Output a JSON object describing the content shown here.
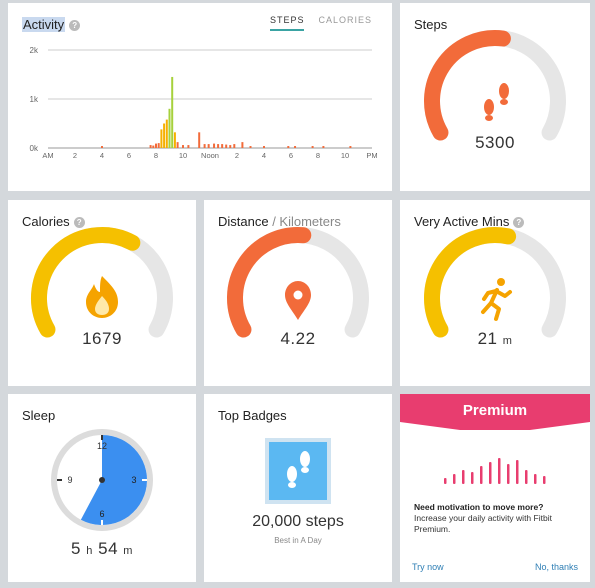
{
  "activity": {
    "title": "Activity",
    "help": "?",
    "tabs": [
      "STEPS",
      "CALORIES"
    ],
    "active_tab": "STEPS"
  },
  "steps_tile": {
    "title": "Steps",
    "value": "5300",
    "progress": 0.53,
    "icon": "footprints-icon",
    "color": "#f26b3a"
  },
  "calories_tile": {
    "title": "Calories",
    "help": "?",
    "value": "1679",
    "progress": 0.62,
    "icon": "flame-icon",
    "color": "#f5c000"
  },
  "distance_tile": {
    "title": "Distance",
    "title_sep": " / ",
    "title_unit": "Kilometers",
    "value": "4.22",
    "progress": 0.52,
    "icon": "location-pin-icon",
    "color": "#f26b3a"
  },
  "vam_tile": {
    "title": "Very Active Mins",
    "help": "?",
    "value": "21",
    "unit": "m",
    "progress": 0.55,
    "icon": "runner-icon",
    "color": "#f5c000"
  },
  "sleep_tile": {
    "title": "Sleep",
    "hours": "5",
    "hours_unit": "h",
    "minutes": "54",
    "minutes_unit": "m",
    "clock_labels": [
      "12",
      "3",
      "6",
      "9"
    ],
    "color": "#3b8ff0"
  },
  "badges_tile": {
    "title": "Top Badges",
    "value": "20,000 steps",
    "subtitle": "Best in A Day",
    "icon": "footprints-badge-icon",
    "color": "#5bb8f2"
  },
  "premium_tile": {
    "title": "Premium",
    "heading": "Need motivation to move more?",
    "body": "Increase your daily activity with Fitbit Premium.",
    "try_label": "Try now",
    "dismiss_label": "No, thanks",
    "color": "#e83d6f"
  },
  "chart_data": {
    "type": "bar",
    "title": "Activity",
    "xlabel": "",
    "ylabel": "",
    "yticks": [
      "2k",
      "1k",
      "0k"
    ],
    "ylim": [
      0,
      2000
    ],
    "xticks": [
      "AM",
      "2",
      "4",
      "6",
      "8",
      "10",
      "Noon",
      "2",
      "4",
      "6",
      "8",
      "10",
      "PM"
    ],
    "series": [
      {
        "values": [
          {
            "hour": 4.0,
            "steps": 40,
            "color": "#f26b3a"
          },
          {
            "hour": 7.6,
            "steps": 60,
            "color": "#f26b3a"
          },
          {
            "hour": 7.8,
            "steps": 50,
            "color": "#f26b3a"
          },
          {
            "hour": 8.0,
            "steps": 90,
            "color": "#f26b3a"
          },
          {
            "hour": 8.2,
            "steps": 100,
            "color": "#f26b3a"
          },
          {
            "hour": 8.4,
            "steps": 380,
            "color": "#f5b000"
          },
          {
            "hour": 8.6,
            "steps": 500,
            "color": "#f5b000"
          },
          {
            "hour": 8.8,
            "steps": 580,
            "color": "#f5b000"
          },
          {
            "hour": 9.0,
            "steps": 800,
            "color": "#a6d13c"
          },
          {
            "hour": 9.2,
            "steps": 1450,
            "color": "#a6d13c"
          },
          {
            "hour": 9.4,
            "steps": 320,
            "color": "#f5b000"
          },
          {
            "hour": 9.6,
            "steps": 120,
            "color": "#f26b3a"
          },
          {
            "hour": 10.0,
            "steps": 60,
            "color": "#f26b3a"
          },
          {
            "hour": 10.4,
            "steps": 60,
            "color": "#f26b3a"
          },
          {
            "hour": 11.2,
            "steps": 320,
            "color": "#f26b3a"
          },
          {
            "hour": 11.6,
            "steps": 80,
            "color": "#f26b3a"
          },
          {
            "hour": 11.9,
            "steps": 80,
            "color": "#f26b3a"
          },
          {
            "hour": 12.3,
            "steps": 90,
            "color": "#f26b3a"
          },
          {
            "hour": 12.6,
            "steps": 80,
            "color": "#f26b3a"
          },
          {
            "hour": 12.9,
            "steps": 80,
            "color": "#f26b3a"
          },
          {
            "hour": 13.2,
            "steps": 70,
            "color": "#f26b3a"
          },
          {
            "hour": 13.5,
            "steps": 60,
            "color": "#f26b3a"
          },
          {
            "hour": 13.8,
            "steps": 80,
            "color": "#f26b3a"
          },
          {
            "hour": 14.4,
            "steps": 120,
            "color": "#f26b3a"
          },
          {
            "hour": 15.0,
            "steps": 40,
            "color": "#f26b3a"
          },
          {
            "hour": 16.0,
            "steps": 40,
            "color": "#f26b3a"
          },
          {
            "hour": 17.8,
            "steps": 40,
            "color": "#f26b3a"
          },
          {
            "hour": 18.3,
            "steps": 40,
            "color": "#f26b3a"
          },
          {
            "hour": 19.6,
            "steps": 40,
            "color": "#f26b3a"
          },
          {
            "hour": 20.4,
            "steps": 40,
            "color": "#f26b3a"
          },
          {
            "hour": 22.4,
            "steps": 40,
            "color": "#f26b3a"
          }
        ]
      }
    ],
    "grid": true
  }
}
